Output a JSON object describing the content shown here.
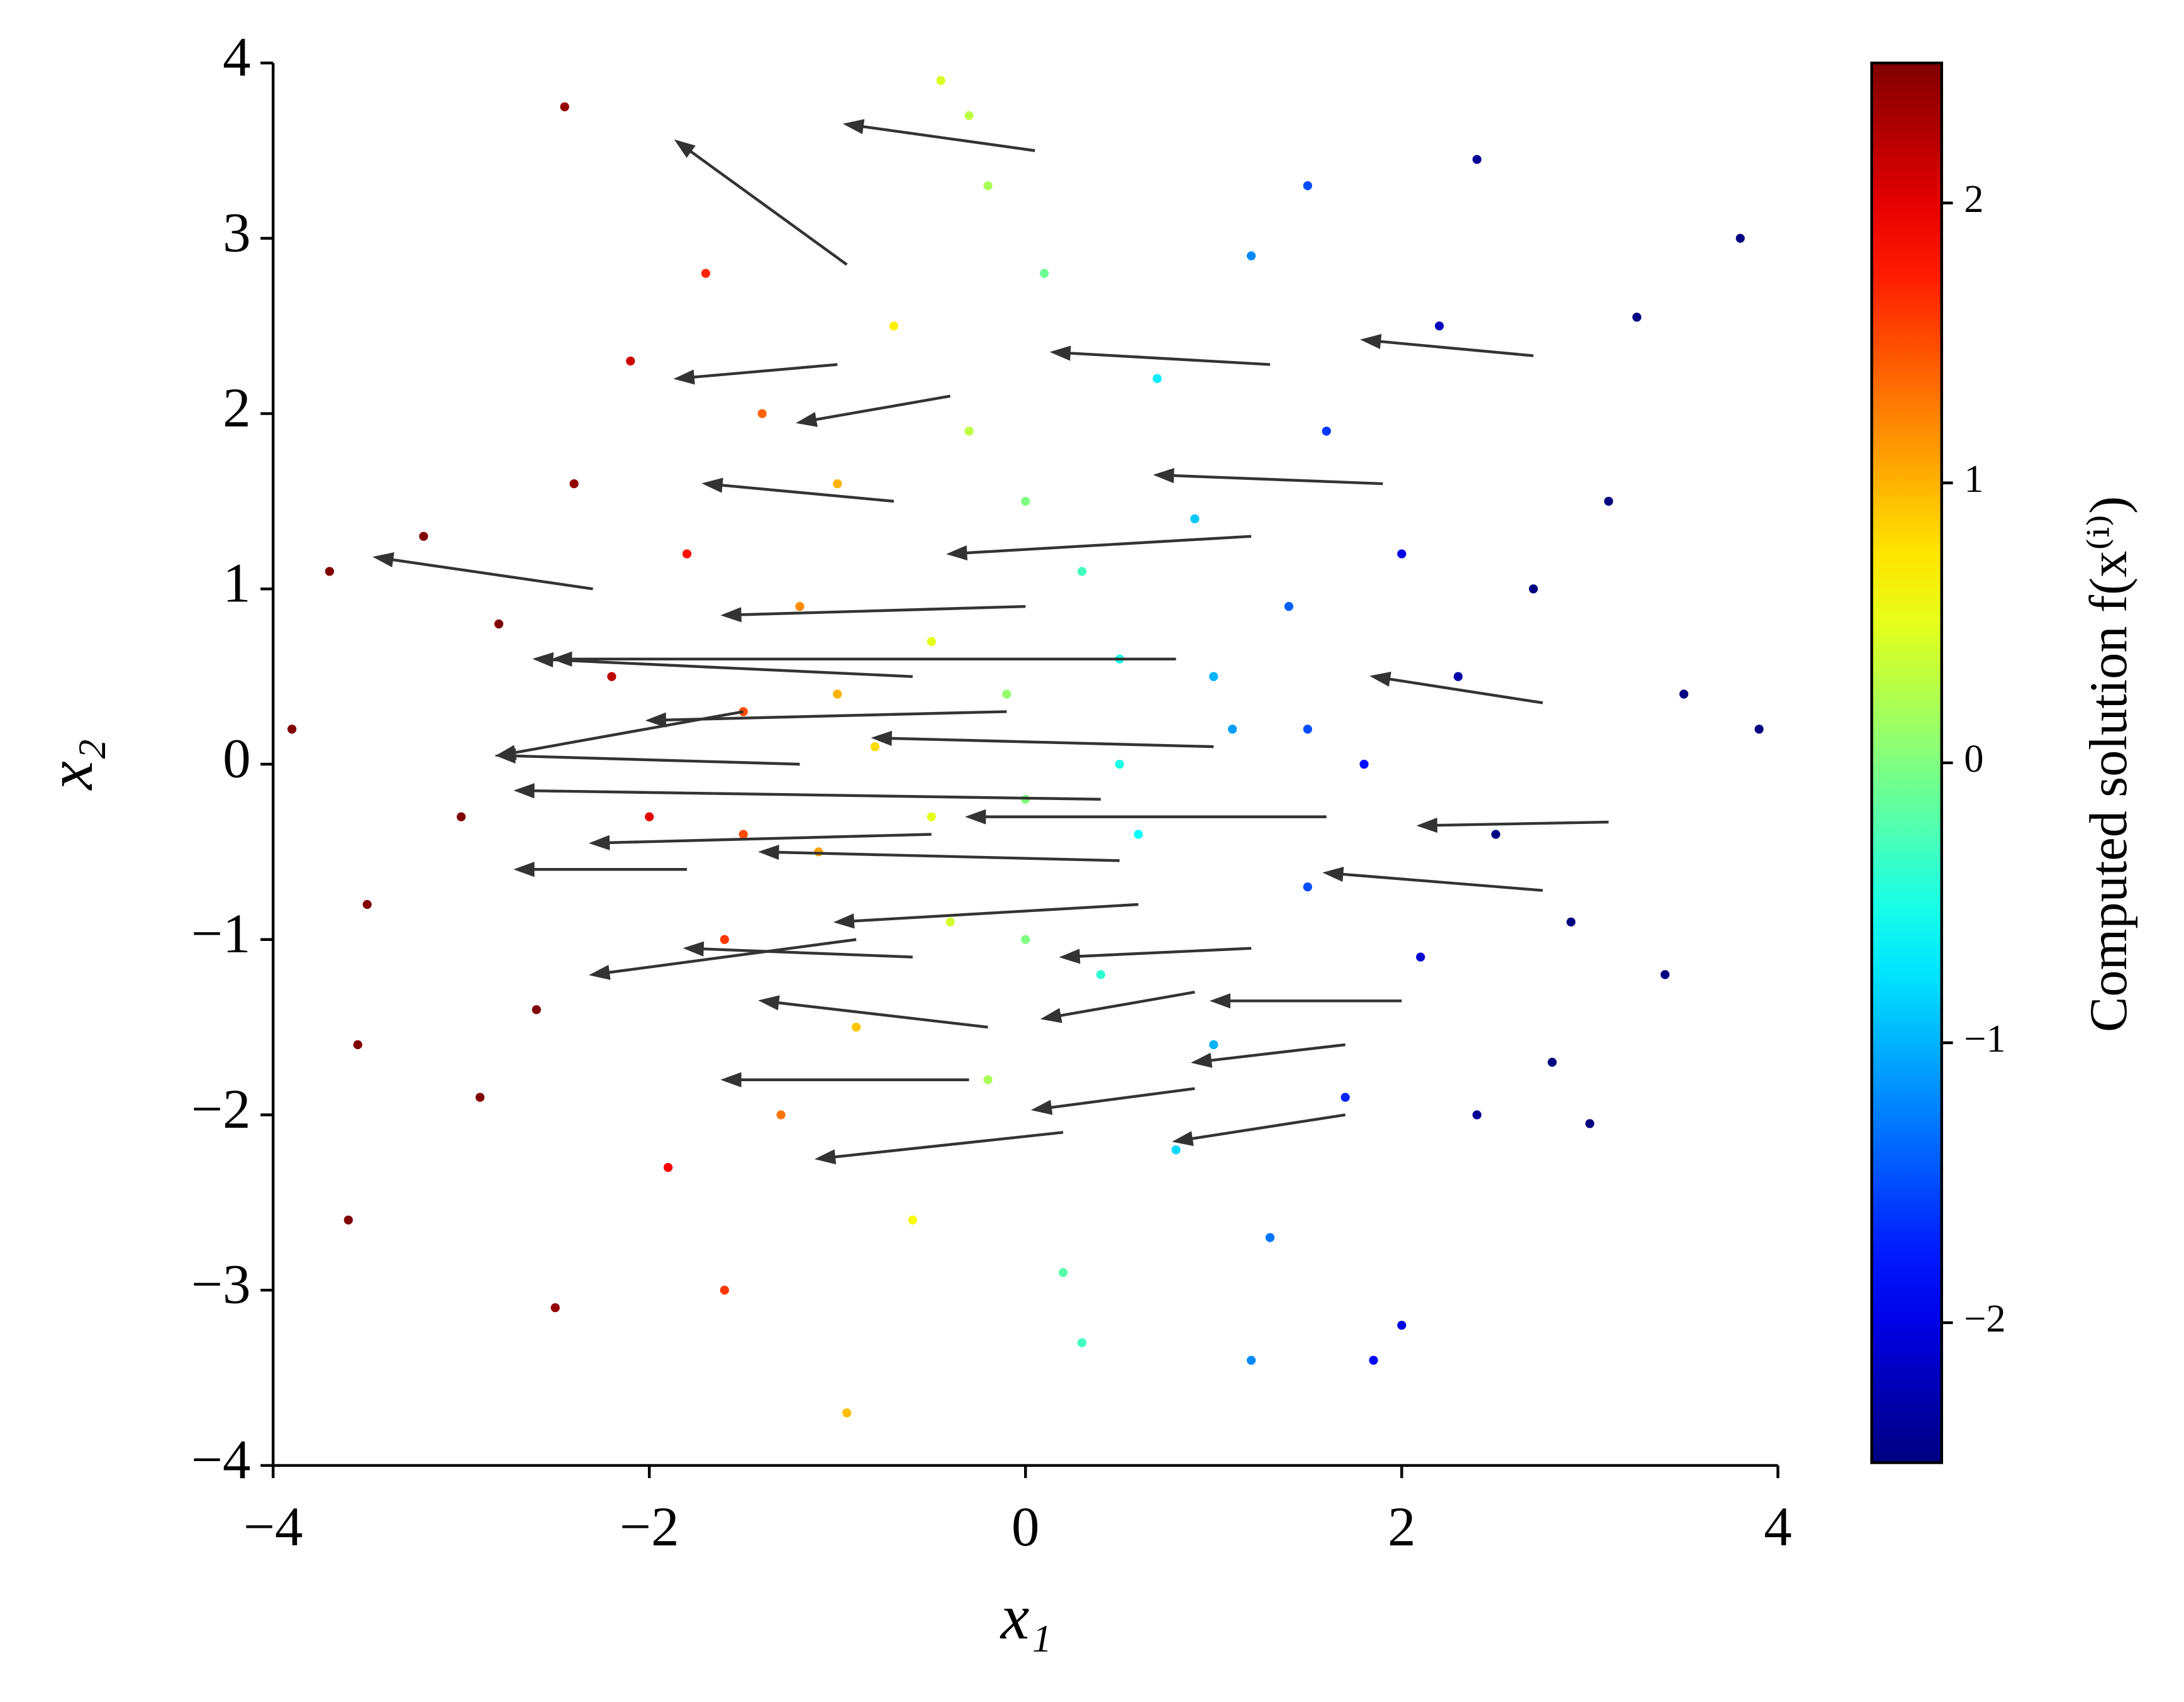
{
  "chart_data": {
    "type": "scatter",
    "xlabel": "x₁",
    "ylabel": "x₂",
    "xlim": [
      -4,
      4
    ],
    "ylim": [
      -4,
      4
    ],
    "xticks": [
      {
        "value": -4,
        "label": "−4"
      },
      {
        "value": -2,
        "label": "−2"
      },
      0,
      2,
      4
    ],
    "yticks": [
      {
        "value": -4,
        "label": "−4"
      },
      {
        "value": -3,
        "label": "−3"
      },
      {
        "value": -2,
        "label": "−2"
      },
      {
        "value": -1,
        "label": "−1"
      },
      0,
      1,
      2,
      3,
      4
    ],
    "cmap": "jet",
    "x": [
      3.8,
      3.9,
      -3.9,
      -2.45,
      -0.45,
      -3.6,
      -2.5,
      -0.95,
      3.0,
      3.4,
      2.4,
      3.25,
      -3.55,
      -3.7,
      -3.5,
      3.5,
      2.0,
      1.85,
      -0.3,
      -2.2,
      -2.0,
      -1.8,
      -1.6,
      -1.5,
      -1.4,
      -1.3,
      -1.2,
      -1.1,
      -1.0,
      -0.9,
      -0.8,
      -0.7,
      -0.6,
      -0.5,
      -0.4,
      -0.3,
      -0.2,
      -0.1,
      0.0,
      0.1,
      0.2,
      0.3,
      0.4,
      0.5,
      0.6,
      0.7,
      0.8,
      0.9,
      1.0,
      1.1,
      1.2,
      1.3,
      1.4,
      1.5,
      1.6,
      1.7,
      1.8,
      2.0,
      2.1,
      2.3,
      2.5,
      2.7,
      2.9,
      -2.4,
      -2.6,
      -2.8,
      -3.0,
      -2.1,
      -1.9,
      2.2,
      2.4,
      -0.2,
      0.3,
      -1.7,
      1.5,
      -1.6,
      1.2,
      -3.2,
      3.1,
      -2.9,
      2.8,
      0.0,
      0.0,
      -0.5,
      0.5,
      -1.0,
      1.0,
      -1.5,
      1.5
    ],
    "y": [
      3.0,
      0.2,
      0.2,
      3.75,
      3.9,
      -2.6,
      -3.1,
      -3.7,
      -2.05,
      -1.2,
      3.45,
      2.55,
      -1.6,
      1.1,
      -0.8,
      0.4,
      -3.2,
      -3.4,
      3.7,
      0.5,
      -0.3,
      1.2,
      -1.0,
      0.3,
      2.0,
      -2.0,
      0.9,
      -0.5,
      1.6,
      -1.5,
      0.1,
      2.5,
      -2.6,
      0.7,
      -0.9,
      1.9,
      -1.8,
      0.4,
      -0.2,
      2.8,
      -2.9,
      1.1,
      -1.2,
      0.6,
      -0.4,
      2.2,
      -2.2,
      1.4,
      -1.6,
      0.2,
      2.9,
      -2.7,
      0.9,
      -0.7,
      1.9,
      -1.9,
      0.0,
      1.2,
      -1.1,
      0.5,
      -0.4,
      1.0,
      -0.9,
      1.6,
      -1.4,
      0.8,
      -0.3,
      2.3,
      -2.3,
      2.5,
      -2.0,
      3.3,
      -3.3,
      2.8,
      3.3,
      -3.0,
      -3.4,
      1.3,
      1.5,
      -1.9,
      -1.7,
      1.5,
      -1.0,
      -0.3,
      0.0,
      0.4,
      0.5,
      -0.4,
      0.2
    ],
    "c": [
      -2.5,
      -2.5,
      2.5,
      2.4,
      0.45,
      2.5,
      2.4,
      0.95,
      -2.5,
      -2.5,
      -2.4,
      -2.5,
      2.5,
      2.5,
      2.5,
      -2.5,
      -2.0,
      -1.85,
      0.3,
      2.2,
      2.0,
      1.8,
      1.6,
      1.5,
      1.4,
      1.3,
      1.2,
      1.1,
      1.0,
      0.9,
      0.8,
      0.7,
      0.6,
      0.5,
      0.4,
      0.3,
      0.2,
      0.1,
      0.0,
      -0.1,
      -0.2,
      -0.3,
      -0.4,
      -0.5,
      -0.6,
      -0.7,
      -0.8,
      -0.9,
      -1.0,
      -1.1,
      -1.2,
      -1.3,
      -1.4,
      -1.5,
      -1.6,
      -1.7,
      -1.8,
      -2.0,
      -2.1,
      -2.3,
      -2.5,
      -2.5,
      -2.5,
      2.4,
      2.5,
      2.5,
      2.5,
      2.1,
      1.9,
      -2.2,
      -2.4,
      0.2,
      -0.3,
      1.7,
      -1.5,
      1.6,
      -1.2,
      2.5,
      -2.5,
      2.5,
      -2.5,
      0.0,
      0.0,
      0.5,
      -0.5,
      1.0,
      -1.0,
      1.5,
      -1.5
    ],
    "quiver": {
      "color": "#333333",
      "x": [
        0.05,
        -0.95,
        2.7,
        -1.0,
        1.3,
        -0.4,
        -2.3,
        -1.5,
        -0.7,
        1.9,
        1.2,
        2.75,
        0.0,
        0.8,
        -0.1,
        -1.2,
        1.6,
        3.1,
        2.75,
        0.5,
        -0.5,
        -1.8,
        1.2,
        2.0,
        0.9,
        -0.2,
        1.7,
        -0.3,
        -0.9,
        0.2,
        0.6,
        -0.6,
        1.0,
        -0.6,
        0.4,
        0.9,
        1.7
      ],
      "y": [
        3.5,
        2.85,
        2.33,
        2.28,
        2.28,
        2.1,
        1.0,
        0.3,
        1.5,
        1.6,
        1.3,
        0.35,
        0.9,
        0.6,
        0.3,
        0.0,
        -0.3,
        -0.33,
        -0.72,
        -0.55,
        -0.4,
        -0.6,
        -1.05,
        -1.35,
        -1.3,
        -1.5,
        -1.6,
        -1.8,
        -1.0,
        -2.1,
        -0.8,
        0.5,
        0.1,
        -1.1,
        -0.2,
        -1.85,
        -2.0
      ],
      "u": [
        -1.0,
        -0.9,
        -0.9,
        -0.85,
        -1.15,
        -0.8,
        -1.15,
        -1.3,
        -1.0,
        -1.2,
        -1.6,
        -0.9,
        -1.6,
        -3.3,
        -1.9,
        -1.6,
        -1.9,
        -1.0,
        -1.15,
        -1.9,
        -1.8,
        -0.9,
        -1.0,
        -1.0,
        -0.8,
        -1.2,
        -0.8,
        -1.3,
        -1.4,
        -1.3,
        -1.6,
        -2.0,
        -1.8,
        -1.2,
        -3.1,
        -0.85,
        -0.9
      ],
      "v": [
        0.15,
        0.7,
        0.09,
        -0.08,
        0.07,
        -0.15,
        0.18,
        -0.25,
        0.1,
        0.05,
        -0.1,
        0.15,
        -0.05,
        0.0,
        -0.05,
        0.05,
        0.0,
        -0.02,
        0.1,
        0.05,
        -0.05,
        0.0,
        -0.05,
        0.0,
        -0.15,
        0.15,
        -0.1,
        0.0,
        -0.2,
        -0.15,
        -0.1,
        0.1,
        0.05,
        0.05,
        0.05,
        -0.12,
        -0.15
      ]
    },
    "colorbar": {
      "label": "Computed solution f(x⁽ⁱ⁾)",
      "lim": [
        -2.5,
        2.5
      ],
      "ticks": [
        {
          "value": -2,
          "label": "−2"
        },
        {
          "value": -1,
          "label": "−1"
        },
        0,
        1,
        2
      ]
    }
  }
}
